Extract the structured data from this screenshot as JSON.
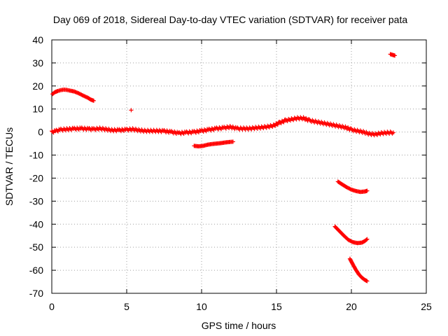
{
  "chart_data": {
    "type": "scatter",
    "title": "Day 069 of 2018, Sidereal Day-to-day VTEC variation (SDTVAR) for receiver pata",
    "xlabel": "GPS time / hours",
    "ylabel": "SDTVAR / TECUs",
    "xlim": [
      0,
      25
    ],
    "ylim": [
      -70,
      40
    ],
    "xticks": [
      "0",
      "5",
      "10",
      "15",
      "20",
      "25"
    ],
    "yticks": [
      "40",
      "30",
      "20",
      "10",
      "0",
      "-10",
      "-20",
      "-30",
      "-40",
      "-50",
      "-60",
      "-70"
    ],
    "grid": true,
    "marker": "plus",
    "color": "#ff0000",
    "series": [
      {
        "name": "main band",
        "points": [
          [
            0,
            0
          ],
          [
            0.3,
            0.5
          ],
          [
            0.6,
            1
          ],
          [
            1,
            1.2
          ],
          [
            1.5,
            1.4
          ],
          [
            2,
            1.5
          ],
          [
            2.5,
            1.3
          ],
          [
            2.8,
            1.2
          ],
          [
            3.2,
            1.5
          ],
          [
            3.6,
            1.2
          ],
          [
            4,
            0.8
          ],
          [
            4.5,
            0.8
          ],
          [
            5,
            1
          ],
          [
            5.4,
            1.2
          ],
          [
            5.8,
            0.8
          ],
          [
            6.2,
            0.5
          ],
          [
            6.6,
            0.5
          ],
          [
            7,
            0.5
          ],
          [
            7.5,
            0.4
          ],
          [
            8,
            0
          ],
          [
            8.5,
            -0.5
          ],
          [
            9,
            -0.2
          ],
          [
            9.5,
            0
          ],
          [
            10,
            0.5
          ],
          [
            10.5,
            1
          ],
          [
            11,
            1.5
          ],
          [
            11.5,
            1.8
          ],
          [
            11.9,
            2.2
          ],
          [
            12.4,
            1.5
          ],
          [
            12.8,
            1.5
          ],
          [
            13.2,
            1.5
          ],
          [
            13.6,
            1.8
          ],
          [
            14,
            2
          ],
          [
            14.4,
            2.3
          ],
          [
            14.8,
            2.8
          ],
          [
            15.2,
            4
          ],
          [
            15.6,
            5
          ],
          [
            16,
            5.5
          ],
          [
            16.4,
            6
          ],
          [
            16.8,
            6
          ],
          [
            17.2,
            5
          ],
          [
            17.6,
            4.5
          ],
          [
            18,
            4
          ],
          [
            18.4,
            3.5
          ],
          [
            18.8,
            3
          ],
          [
            19.2,
            2.5
          ],
          [
            19.6,
            2
          ],
          [
            20,
            1
          ],
          [
            20.4,
            0.5
          ],
          [
            20.8,
            0
          ],
          [
            21.2,
            -0.8
          ],
          [
            21.6,
            -1
          ],
          [
            22,
            -0.5
          ],
          [
            22.4,
            -0.3
          ],
          [
            22.8,
            -0.2
          ]
        ]
      },
      {
        "name": "early arc",
        "points": [
          [
            0.05,
            16.5
          ],
          [
            0.2,
            17.3
          ],
          [
            0.4,
            17.8
          ],
          [
            0.6,
            18.2
          ],
          [
            0.8,
            18.4
          ],
          [
            1,
            18.3
          ],
          [
            1.2,
            18
          ],
          [
            1.5,
            17.6
          ],
          [
            1.8,
            16.8
          ],
          [
            2.1,
            15.8
          ],
          [
            2.4,
            14.9
          ],
          [
            2.6,
            14.1
          ],
          [
            2.8,
            13.6
          ]
        ]
      },
      {
        "name": "midday segment",
        "points": [
          [
            9.5,
            -6
          ],
          [
            9.8,
            -6.2
          ],
          [
            10.1,
            -6
          ],
          [
            10.4,
            -5.5
          ],
          [
            10.7,
            -5.2
          ],
          [
            11,
            -5
          ],
          [
            11.3,
            -4.8
          ],
          [
            11.6,
            -4.5
          ],
          [
            11.9,
            -4.3
          ],
          [
            12.1,
            -4.2
          ]
        ]
      },
      {
        "name": "late arc A",
        "points": [
          [
            19.1,
            -21.5
          ],
          [
            19.4,
            -22.8
          ],
          [
            19.7,
            -24
          ],
          [
            20,
            -25
          ],
          [
            20.3,
            -25.6
          ],
          [
            20.6,
            -26
          ],
          [
            20.9,
            -25.8
          ],
          [
            21.05,
            -25.5
          ]
        ]
      },
      {
        "name": "late arc B",
        "points": [
          [
            18.9,
            -41
          ],
          [
            19.2,
            -43
          ],
          [
            19.5,
            -45
          ],
          [
            19.8,
            -46.8
          ],
          [
            20.1,
            -47.8
          ],
          [
            20.4,
            -48.2
          ],
          [
            20.7,
            -48
          ],
          [
            20.9,
            -47.3
          ],
          [
            21.05,
            -46.5
          ]
        ]
      },
      {
        "name": "late arc C",
        "points": [
          [
            19.9,
            -55
          ],
          [
            20.1,
            -57.5
          ],
          [
            20.3,
            -59.8
          ],
          [
            20.5,
            -61.8
          ],
          [
            20.7,
            -63.2
          ],
          [
            20.9,
            -64.2
          ],
          [
            21.05,
            -64.7
          ]
        ]
      },
      {
        "name": "isolated 1",
        "points": [
          [
            5.3,
            9.5
          ]
        ]
      },
      {
        "name": "isolated 2",
        "points": [
          [
            22.6,
            33.8
          ],
          [
            22.75,
            33.5
          ],
          [
            22.9,
            33.2
          ]
        ]
      }
    ]
  }
}
